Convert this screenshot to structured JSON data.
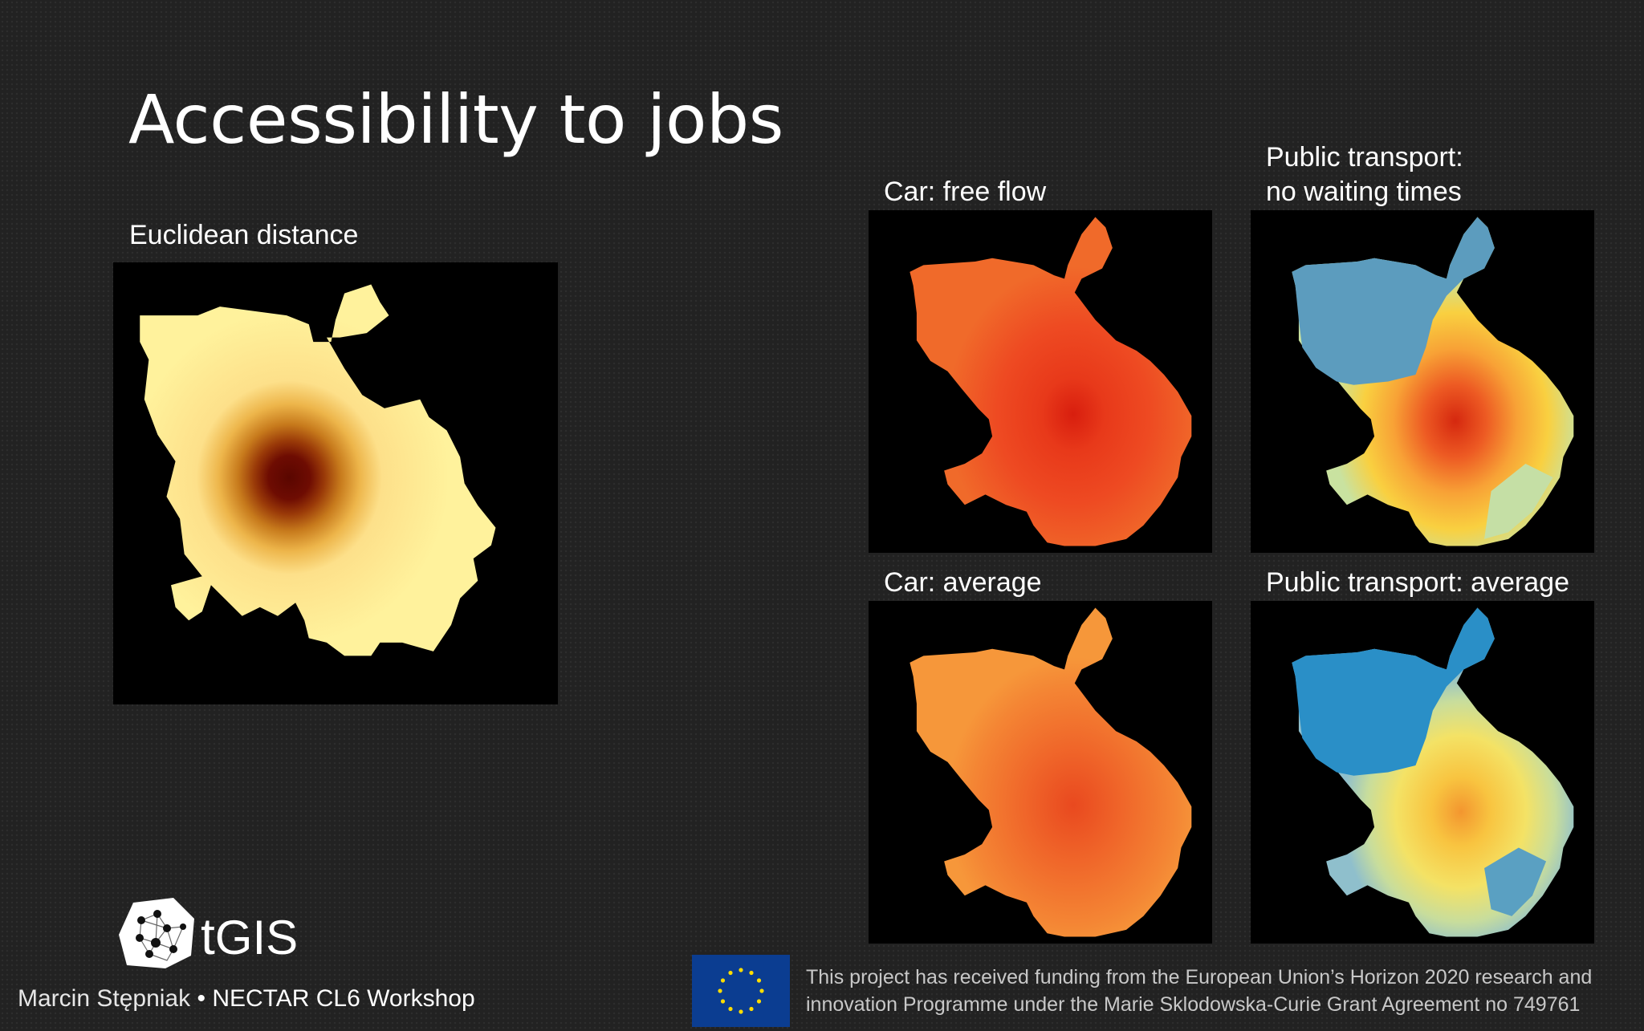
{
  "slide": {
    "title": "Accessibility to jobs"
  },
  "maps": [
    {
      "label": "Euclidean distance",
      "palette": "yellow-to-dark-red"
    },
    {
      "label": "Car: free flow",
      "palette": "orange-red"
    },
    {
      "label_line1": "Public transport:",
      "label_line2": "no waiting times",
      "palette": "blue-yellow-red"
    },
    {
      "label": "Car: average",
      "palette": "orange"
    },
    {
      "label": "Public transport: average",
      "palette": "blue-yellow-orange"
    }
  ],
  "logo": {
    "text_t": "t",
    "text_rest": "GIS",
    "icon": "network-graph-icon"
  },
  "footer": {
    "author": "Marcin Stępniak",
    "separator": "•",
    "event": "NECTAR CL6 Workshop",
    "funding_line1": "This project has received funding from the European Union’s Horizon 2020 research and",
    "funding_line2": "innovation Programme under the Marie Sklodowska-Curie Grant Agreement no 749761",
    "eu_flag_icon": "eu-flag-icon"
  },
  "colors": {
    "background": "#222222",
    "text": "#ffffff",
    "footer_text": "#c8c8c8",
    "eu_blue": "#0b3d91",
    "eu_star": "#ffdd00"
  }
}
